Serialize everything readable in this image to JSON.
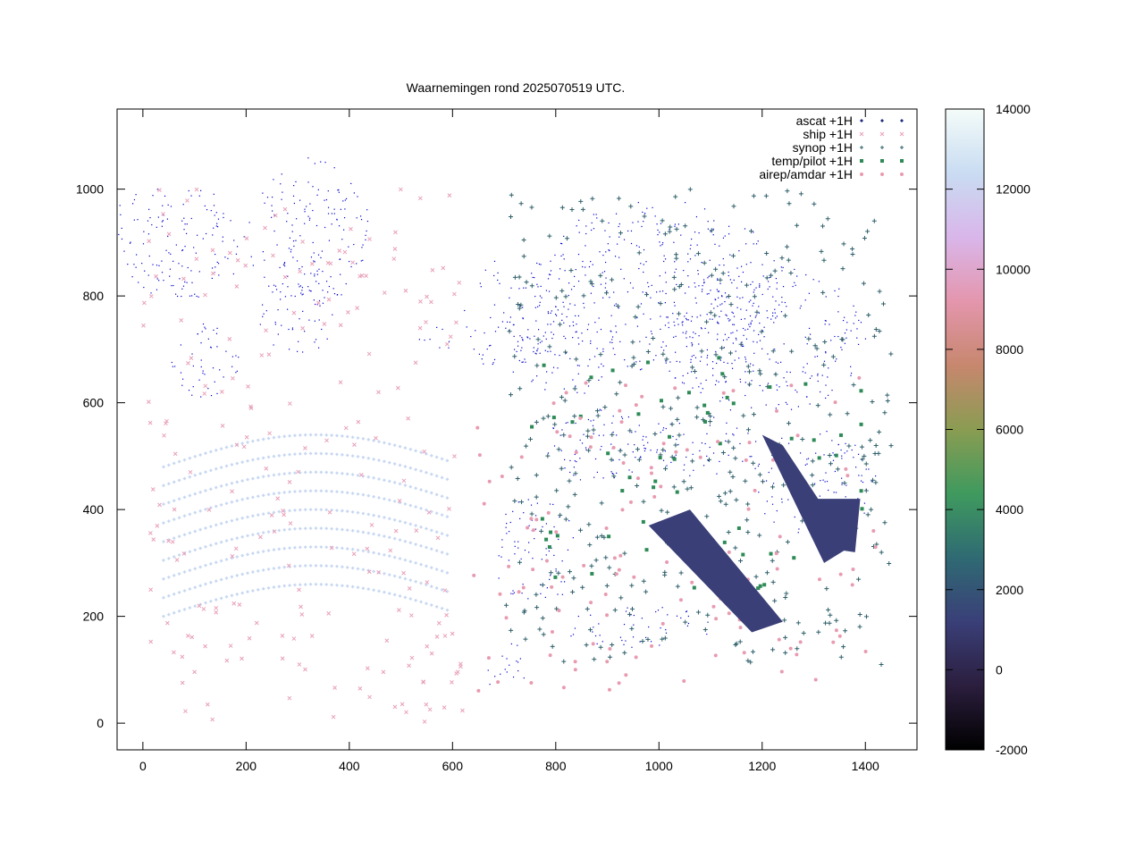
{
  "chart_data": {
    "type": "scatter",
    "title": "Waarnemingen rond 2025070519 UTC.",
    "xlabel": "",
    "ylabel": "",
    "xlim": [
      -50,
      1500
    ],
    "ylim": [
      -50,
      1150
    ],
    "x_ticks": [
      0,
      200,
      400,
      600,
      800,
      1000,
      1200,
      1400
    ],
    "y_ticks": [
      0,
      200,
      400,
      600,
      800,
      1000
    ],
    "grid": false,
    "legend_position": "top-right",
    "series": [
      {
        "name": "ascat +1H",
        "marker": "diamond",
        "color": "#1f2a7a"
      },
      {
        "name": "ship +1H",
        "marker": "cross",
        "color": "#e8a0b8"
      },
      {
        "name": "synop +1H",
        "marker": "plus",
        "color": "#2f5f6a"
      },
      {
        "name": "temp/pilot +1H",
        "marker": "square",
        "color": "#2e8b57"
      },
      {
        "name": "airep/amdar +1H",
        "marker": "circle",
        "color": "#e89bb0"
      }
    ],
    "colorbar": {
      "min": -2000,
      "max": 14000,
      "ticks": [
        14000,
        12000,
        10000,
        8000,
        6000,
        4000,
        2000,
        0,
        -2000
      ],
      "colors": [
        "#000000",
        "#2b1e3e",
        "#3a3f78",
        "#2f6a73",
        "#3f9a5e",
        "#8a9c52",
        "#c7876e",
        "#e496ad",
        "#d9b6ea",
        "#c9dcf2",
        "#f4fcf9"
      ]
    }
  }
}
